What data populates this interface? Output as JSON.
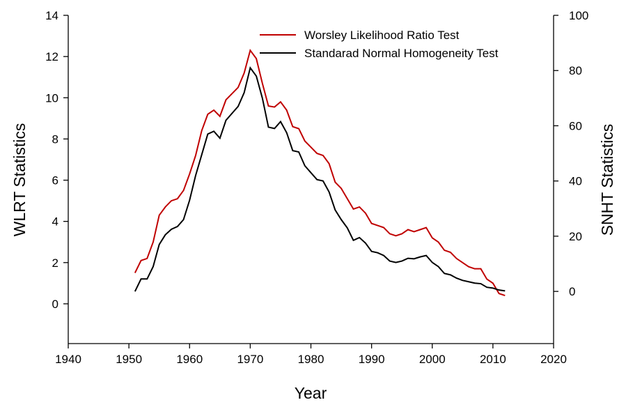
{
  "chart_data": {
    "type": "line",
    "x_label": "Year",
    "y_label": "WLRT Statistics",
    "y2_label": "SNHT Statistics",
    "x": [
      1951,
      1952,
      1953,
      1954,
      1955,
      1956,
      1957,
      1958,
      1959,
      1960,
      1961,
      1962,
      1963,
      1964,
      1965,
      1966,
      1967,
      1968,
      1969,
      1970,
      1971,
      1972,
      1973,
      1974,
      1975,
      1976,
      1977,
      1978,
      1979,
      1980,
      1981,
      1982,
      1983,
      1984,
      1985,
      1986,
      1987,
      1988,
      1989,
      1990,
      1991,
      1992,
      1993,
      1994,
      1995,
      1996,
      1997,
      1998,
      1999,
      2000,
      2001,
      2002,
      2003,
      2004,
      2005,
      2006,
      2007,
      2008,
      2009,
      2010,
      2011,
      2012
    ],
    "series": [
      {
        "name": "Worsley Likelihood Ratio Test",
        "color": "#c00000",
        "values": [
          1.5,
          2.1,
          2.2,
          3.0,
          4.3,
          4.7,
          5.0,
          5.1,
          5.5,
          6.3,
          7.2,
          8.4,
          9.2,
          9.4,
          9.1,
          9.9,
          10.2,
          10.5,
          11.2,
          12.3,
          11.9,
          10.7,
          9.6,
          9.55,
          9.8,
          9.4,
          8.6,
          8.5,
          7.9,
          7.6,
          7.3,
          7.2,
          6.8,
          5.9,
          5.6,
          5.1,
          4.6,
          4.7,
          4.4,
          3.9,
          3.8,
          3.7,
          3.4,
          3.3,
          3.4,
          3.6,
          3.5,
          3.6,
          3.7,
          3.2,
          3.0,
          2.6,
          2.5,
          2.2,
          2.0,
          1.8,
          1.7,
          1.7,
          1.2,
          1.0,
          0.5,
          0.4
        ]
      },
      {
        "name": "Standarad Normal Homogeneity Test",
        "color": "#000000",
        "axis": "y2",
        "values": [
          0,
          4.5,
          4.5,
          9,
          17,
          20.5,
          22.5,
          23.5,
          26,
          33,
          42,
          49.5,
          57,
          58,
          55.5,
          62,
          64.5,
          67,
          72,
          81,
          78,
          70,
          59.5,
          59,
          61.5,
          57.5,
          51,
          50.5,
          45.5,
          43,
          40.5,
          40,
          36,
          29.5,
          26,
          23,
          18.5,
          19.5,
          17.5,
          14.5,
          14,
          13,
          11,
          10.5,
          11,
          12,
          11.8,
          12.5,
          13,
          10.5,
          9,
          6.5,
          6,
          4.8,
          4,
          3.5,
          3,
          2.8,
          1.5,
          1.2,
          0.5,
          0.2
        ]
      }
    ],
    "xlim": [
      1940,
      2020
    ],
    "xticks": [
      1940,
      1950,
      1960,
      1970,
      1980,
      1990,
      2000,
      2010,
      2020
    ],
    "ylim": [
      -1.93,
      14
    ],
    "yticks": [
      0,
      2,
      4,
      6,
      8,
      10,
      12,
      14
    ],
    "y2lim": [
      -18.9,
      100
    ],
    "y2ticks": [
      0,
      20,
      40,
      60,
      80,
      100
    ],
    "legend": "top"
  }
}
